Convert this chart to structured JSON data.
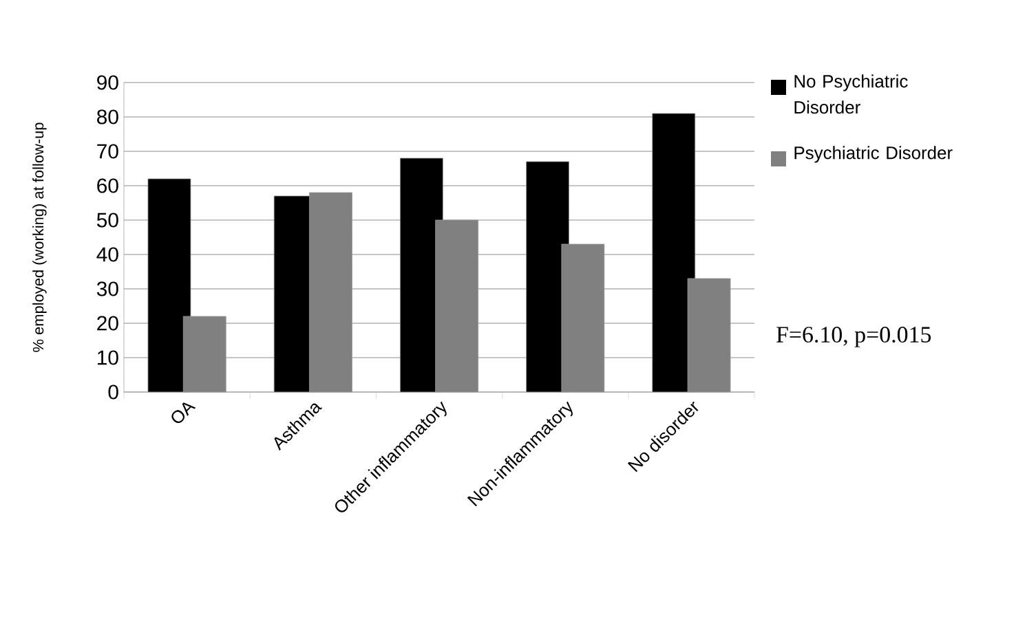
{
  "chart_data": {
    "type": "bar",
    "ylabel": "% employed (working) at follow-up",
    "categories": [
      "OA",
      "Asthma",
      "Other inflammatory",
      "Non-inflammatory",
      "No disorder"
    ],
    "series": [
      {
        "name": "No Psychiatric Disorder",
        "color": "#000000",
        "values": [
          62,
          57,
          68,
          67,
          81
        ]
      },
      {
        "name": "Psychiatric Disorder",
        "color": "#808080",
        "values": [
          22,
          58,
          50,
          43,
          33
        ]
      }
    ],
    "ylim": [
      0,
      90
    ],
    "yticks": [
      0,
      10,
      20,
      30,
      40,
      50,
      60,
      70,
      80,
      90
    ],
    "grid": "y",
    "legend": "right",
    "annotations": [
      "F=6.10, p=0.015"
    ]
  }
}
